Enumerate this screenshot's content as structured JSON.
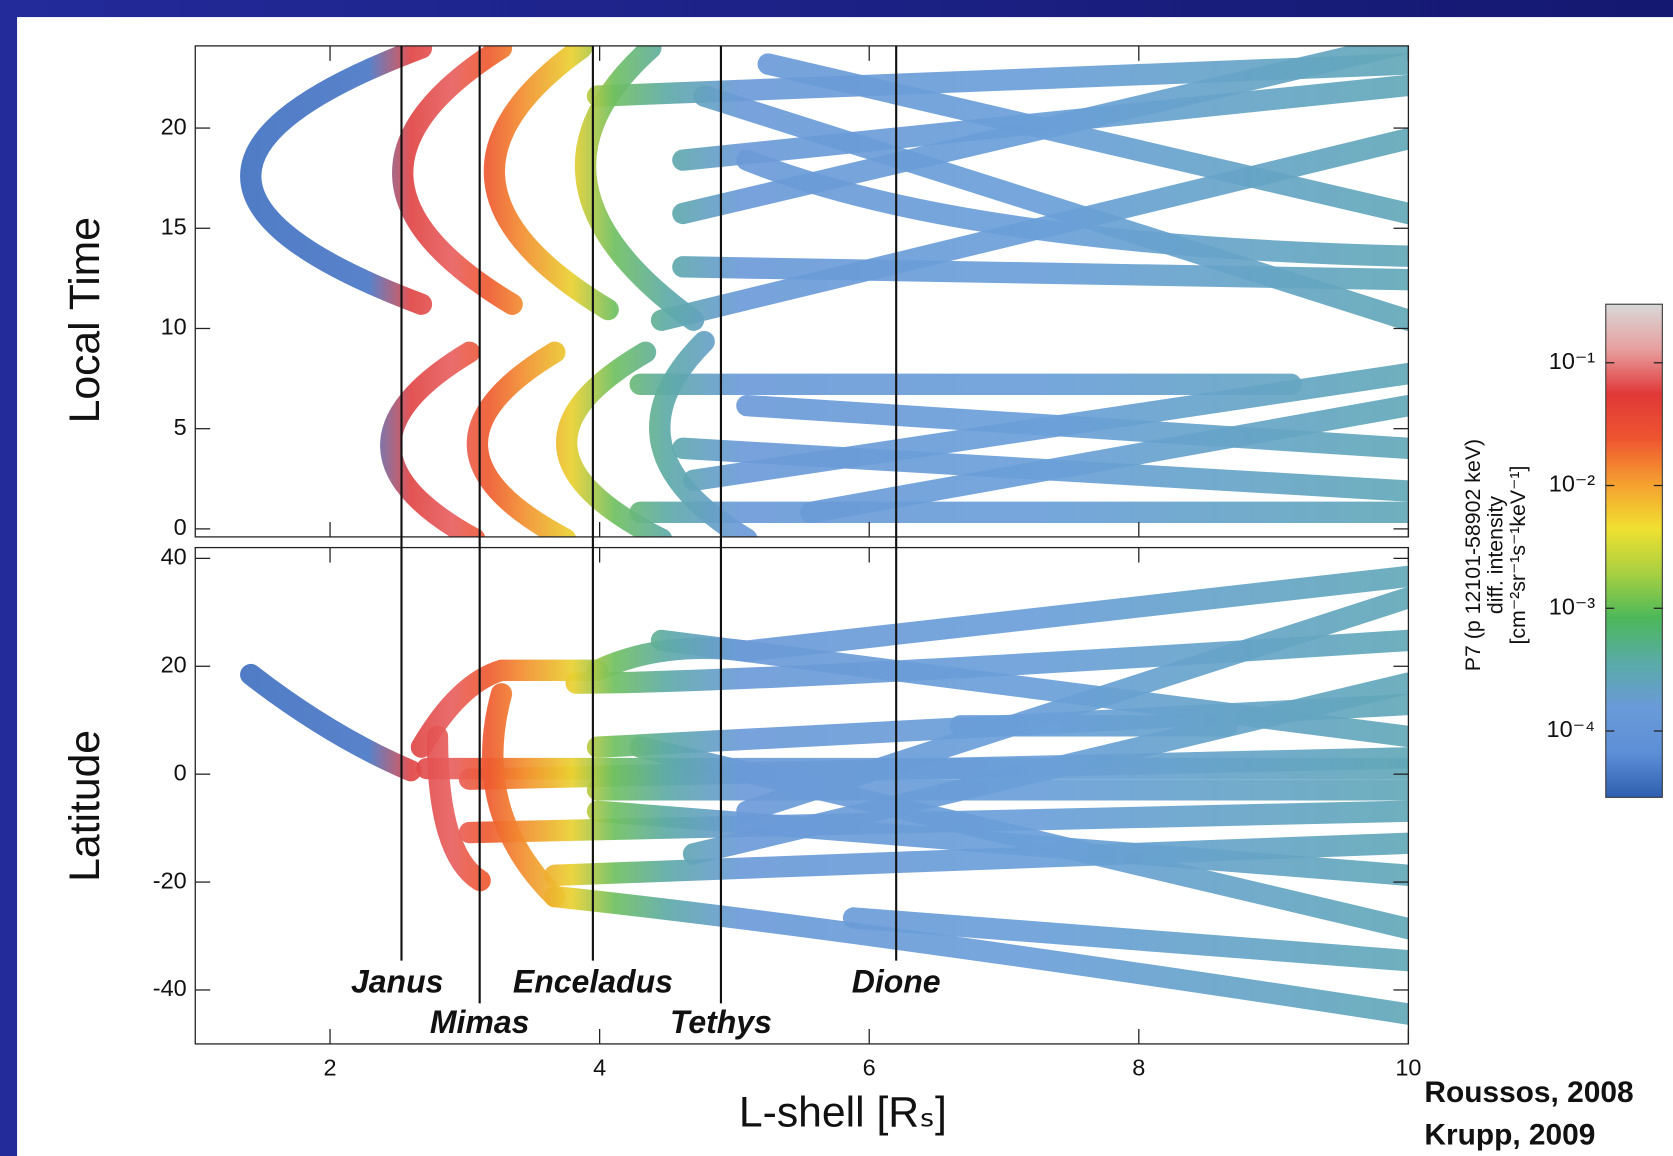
{
  "chart_data": [
    {
      "type": "trajectory",
      "ylabel": "Local Time",
      "ylim": [
        -0.4,
        24.1
      ],
      "yticks": [
        0,
        5,
        10,
        15,
        20
      ]
    },
    {
      "type": "trajectory",
      "ylabel": "Latitude",
      "ylim": [
        -50,
        42
      ],
      "yticks": [
        -40,
        -20,
        0,
        20,
        40
      ],
      "xlabel": "L-shell [Rₛ]",
      "xlim": [
        1,
        10
      ],
      "xticks": [
        2,
        4,
        6,
        8,
        10
      ],
      "annotations": [
        {
          "text": "Janus",
          "x": 2.53
        },
        {
          "text": "Mimas",
          "x": 3.11
        },
        {
          "text": "Enceladus",
          "x": 3.95
        },
        {
          "text": "Tethys",
          "x": 4.9
        },
        {
          "text": "Dione",
          "x": 6.2
        }
      ]
    },
    {
      "type": "colorbar",
      "label": [
        "P7 (p 12101-58902 keV)",
        "diff. intensity",
        "[cm⁻²sr⁻¹s⁻¹keV⁻¹]"
      ],
      "log": true,
      "ylim": [
        2.88e-05,
        0.3
      ],
      "yticks": [
        {
          "value": 0.1,
          "label": "10⁻¹"
        },
        {
          "value": 0.01,
          "label": "10⁻²"
        },
        {
          "value": 0.001,
          "label": "10⁻³"
        },
        {
          "value": 0.0001,
          "label": "10⁻⁴"
        }
      ],
      "colors": [
        "#2f5fb0",
        "#5d8fd8",
        "#6a9ad8",
        "#5aaba8",
        "#4cb85a",
        "#a8d040",
        "#f0e030",
        "#f5a030",
        "#ee5530",
        "#e03838",
        "#e8a0a0",
        "#d8d8d8"
      ]
    }
  ],
  "credits": [
    "Roussos, 2008",
    "Krupp, 2009"
  ]
}
